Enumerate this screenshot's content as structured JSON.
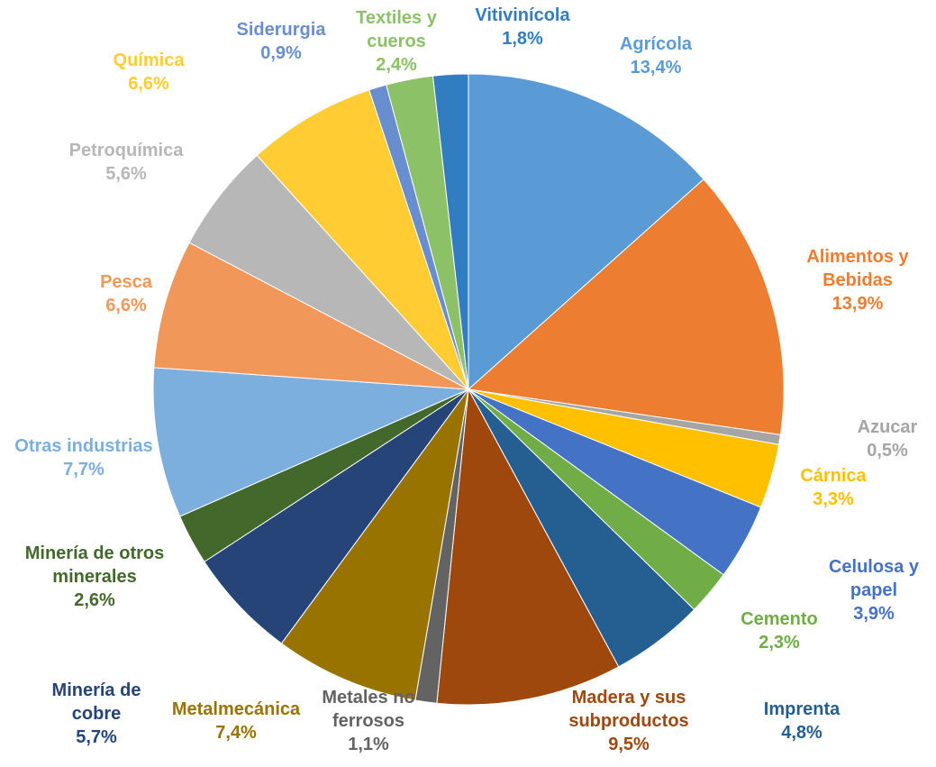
{
  "chart_data": {
    "type": "pie",
    "categories": [
      "Agrícola",
      "Alimentos y Bebidas",
      "Azucar",
      "Cárnica",
      "Celulosa y papel",
      "Cemento",
      "Imprenta",
      "Madera y sus subproductos",
      "Metales no ferrosos",
      "Metalmecánica",
      "Minería de cobre",
      "Minería de otros minerales",
      "Otras industrias",
      "Pesca",
      "Petroquímica",
      "Química",
      "Siderurgia",
      "Textiles y cueros",
      "Vitivinícola"
    ],
    "values": [
      13.4,
      13.9,
      0.5,
      3.3,
      3.9,
      2.3,
      4.8,
      9.5,
      1.1,
      7.4,
      5.7,
      2.6,
      7.7,
      6.6,
      5.6,
      6.6,
      0.9,
      2.4,
      1.8
    ],
    "value_labels": [
      "13,4%",
      "13,9%",
      "0,5%",
      "3,3%",
      "3,9%",
      "2,3%",
      "4,8%",
      "9,5%",
      "1,1%",
      "7,4%",
      "5,7%",
      "2,6%",
      "7,7%",
      "6,6%",
      "5,6%",
      "6,6%",
      "0,9%",
      "2,4%",
      "1,8%"
    ],
    "colors": [
      "#5b9bd5",
      "#ed7d31",
      "#a5a5a5",
      "#ffc000",
      "#4472c4",
      "#70ad47",
      "#255e91",
      "#9e480e",
      "#636363",
      "#997300",
      "#264478",
      "#43682b",
      "#7cafdd",
      "#f1975a",
      "#b7b7b7",
      "#ffcd33",
      "#698ed0",
      "#8cc168",
      "#327dc2"
    ]
  }
}
